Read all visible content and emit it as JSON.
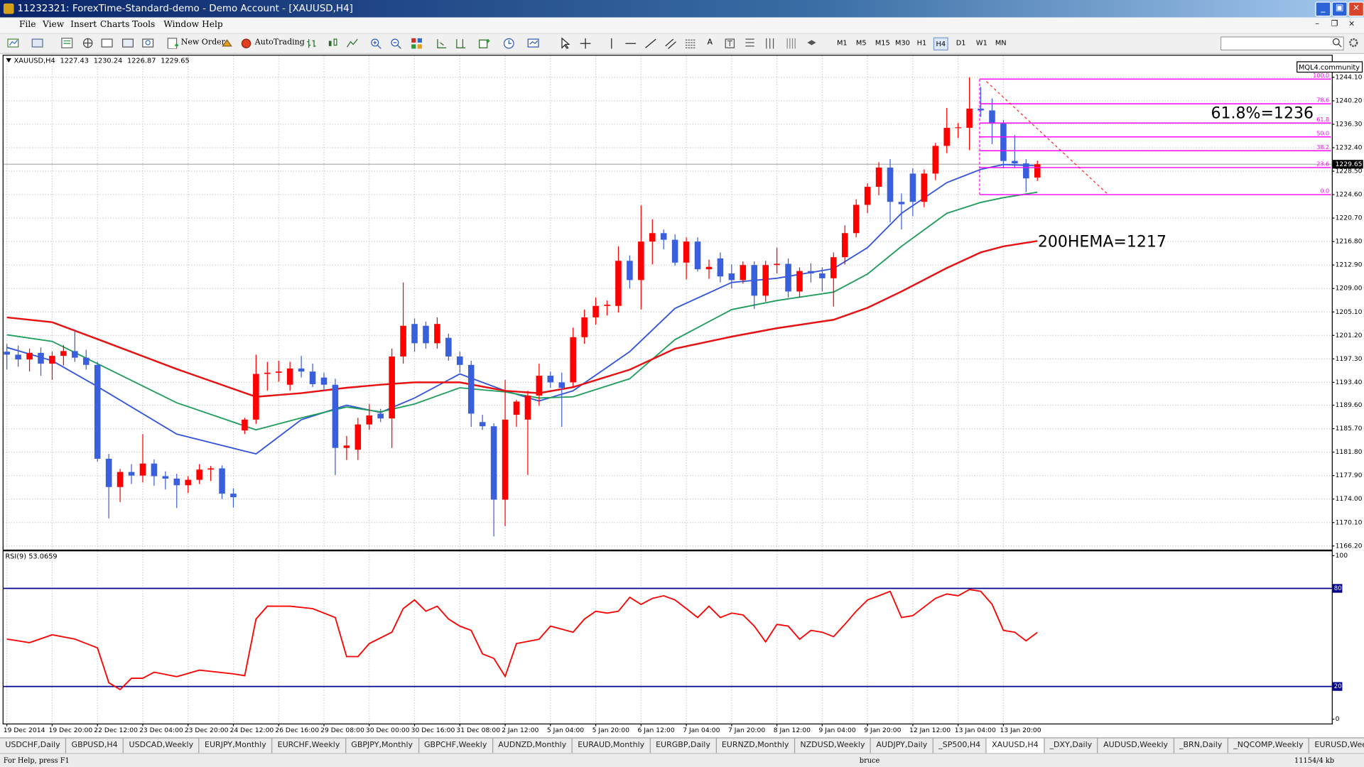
{
  "window": {
    "title": "11232321: ForexTime-Standard-demo - Demo Account - [XAUUSD,H4]"
  },
  "menu": [
    "File",
    "View",
    "Insert",
    "Charts",
    "Tools",
    "Window",
    "Help"
  ],
  "toolbar": {
    "new_order": "New Order",
    "autotrading": "AutoTrading",
    "timeframes": [
      "M1",
      "M5",
      "M15",
      "M30",
      "H1",
      "H4",
      "D1",
      "W1",
      "MN"
    ],
    "active": "H4"
  },
  "badge": "MQL4.community",
  "chart_data": [
    {
      "type": "candlestick",
      "symbol": "XAUUSD,H4",
      "candles": [
        [
          1198.5,
          1199.8,
          1195.5,
          1198.0
        ],
        [
          1198.0,
          1199.5,
          1196.0,
          1197.2
        ],
        [
          1197.2,
          1199.0,
          1195.2,
          1198.3
        ],
        [
          1198.3,
          1199.2,
          1194.5,
          1196.5
        ],
        [
          1196.5,
          1198.5,
          1193.8,
          1197.8
        ],
        [
          1197.8,
          1199.6,
          1196.2,
          1198.6
        ],
        [
          1198.6,
          1202.2,
          1196.8,
          1197.5
        ],
        [
          1197.5,
          1198.8,
          1195.5,
          1196.3
        ],
        [
          1196.3,
          1196.8,
          1180.2,
          1180.7
        ],
        [
          1180.7,
          1181.5,
          1170.8,
          1176.0
        ],
        [
          1176.0,
          1179.0,
          1173.5,
          1178.5
        ],
        [
          1178.5,
          1179.8,
          1176.5,
          1177.9
        ],
        [
          1177.9,
          1184.8,
          1176.8,
          1179.9
        ],
        [
          1179.9,
          1180.6,
          1176.2,
          1177.8
        ],
        [
          1177.8,
          1178.6,
          1175.6,
          1177.4
        ],
        [
          1177.4,
          1178.2,
          1172.5,
          1176.3
        ],
        [
          1176.3,
          1177.8,
          1175.0,
          1177.2
        ],
        [
          1177.2,
          1179.8,
          1176.5,
          1178.9
        ],
        [
          1178.9,
          1179.5,
          1177.0,
          1179.1
        ],
        [
          1179.1,
          1179.6,
          1174.0,
          1174.9
        ],
        [
          1174.9,
          1175.8,
          1172.6,
          1174.3
        ],
        [
          1185.4,
          1187.5,
          1184.8,
          1187.2
        ],
        [
          1187.2,
          1198.0,
          1186.5,
          1194.8
        ],
        [
          1194.8,
          1196.8,
          1192.0,
          1195.0
        ],
        [
          1195.0,
          1197.0,
          1193.5,
          1195.2
        ],
        [
          1193.0,
          1196.8,
          1192.0,
          1195.7
        ],
        [
          1195.7,
          1197.8,
          1194.2,
          1195.2
        ],
        [
          1195.2,
          1196.5,
          1192.6,
          1193.1
        ],
        [
          1194.2,
          1195.0,
          1192.0,
          1193.0
        ],
        [
          1193.0,
          1194.0,
          1178.0,
          1182.5
        ],
        [
          1182.5,
          1184.5,
          1180.5,
          1182.9
        ],
        [
          1182.2,
          1187.5,
          1180.5,
          1186.4
        ],
        [
          1186.4,
          1189.8,
          1185.5,
          1187.9
        ],
        [
          1188.2,
          1189.0,
          1186.8,
          1187.4
        ],
        [
          1187.4,
          1199.0,
          1182.5,
          1197.7
        ],
        [
          1197.7,
          1210.0,
          1196.5,
          1202.8
        ],
        [
          1203.1,
          1204.0,
          1198.5,
          1199.9
        ],
        [
          1202.8,
          1203.5,
          1199.0,
          1199.9
        ],
        [
          1199.9,
          1204.2,
          1199.0,
          1203.1
        ],
        [
          1200.8,
          1201.5,
          1197.0,
          1197.7
        ],
        [
          1197.7,
          1198.5,
          1195.0,
          1196.3
        ],
        [
          1196.3,
          1197.0,
          1186.0,
          1188.2
        ],
        [
          1186.8,
          1188.0,
          1185.5,
          1186.1
        ],
        [
          1186.1,
          1186.6,
          1167.8,
          1173.9
        ],
        [
          1173.9,
          1193.8,
          1169.5,
          1187.2
        ],
        [
          1188.0,
          1190.5,
          1186.0,
          1190.2
        ],
        [
          1187.2,
          1192.0,
          1178.0,
          1191.2
        ],
        [
          1191.2,
          1196.5,
          1189.5,
          1194.5
        ],
        [
          1194.5,
          1195.2,
          1192.5,
          1193.4
        ],
        [
          1193.4,
          1195.0,
          1186.0,
          1192.5
        ],
        [
          1193.4,
          1202.5,
          1192.5,
          1200.9
        ],
        [
          1200.9,
          1205.5,
          1199.8,
          1204.2
        ],
        [
          1204.2,
          1207.5,
          1203.0,
          1206.1
        ],
        [
          1206.1,
          1207.0,
          1204.5,
          1206.3
        ],
        [
          1206.1,
          1216.0,
          1205.0,
          1213.6
        ],
        [
          1213.6,
          1214.5,
          1209.0,
          1210.4
        ],
        [
          1210.4,
          1222.8,
          1205.5,
          1216.8
        ],
        [
          1216.8,
          1220.5,
          1213.0,
          1218.2
        ],
        [
          1218.2,
          1218.8,
          1215.5,
          1217.1
        ],
        [
          1217.1,
          1218.0,
          1212.8,
          1213.3
        ],
        [
          1213.3,
          1217.5,
          1210.5,
          1216.8
        ],
        [
          1216.8,
          1217.5,
          1211.8,
          1212.2
        ],
        [
          1212.2,
          1213.8,
          1210.6,
          1212.6
        ],
        [
          1214.0,
          1215.0,
          1210.0,
          1211.0
        ],
        [
          1211.5,
          1213.0,
          1209.0,
          1210.4
        ],
        [
          1210.4,
          1213.5,
          1209.8,
          1212.9
        ],
        [
          1212.9,
          1213.5,
          1205.6,
          1207.8
        ],
        [
          1207.8,
          1213.6,
          1206.8,
          1212.9
        ],
        [
          1212.9,
          1215.8,
          1211.5,
          1213.1
        ],
        [
          1213.1,
          1214.0,
          1207.5,
          1208.5
        ],
        [
          1208.5,
          1212.5,
          1207.5,
          1211.9
        ],
        [
          1211.9,
          1213.2,
          1210.0,
          1211.5
        ],
        [
          1211.5,
          1212.5,
          1208.5,
          1210.7
        ],
        [
          1210.7,
          1215.0,
          1206.0,
          1214.2
        ],
        [
          1214.2,
          1219.5,
          1213.0,
          1218.2
        ],
        [
          1218.2,
          1223.8,
          1217.5,
          1222.9
        ],
        [
          1222.9,
          1226.5,
          1221.5,
          1225.9
        ],
        [
          1225.9,
          1230.0,
          1224.5,
          1229.1
        ],
        [
          1229.1,
          1230.5,
          1220.0,
          1223.4
        ],
        [
          1223.4,
          1224.8,
          1218.8,
          1223.0
        ],
        [
          1228.1,
          1229.0,
          1221.0,
          1223.4
        ],
        [
          1223.4,
          1228.8,
          1222.5,
          1228.1
        ],
        [
          1228.1,
          1233.2,
          1227.0,
          1232.7
        ],
        [
          1232.7,
          1239.0,
          1231.5,
          1235.7
        ],
        [
          1235.7,
          1236.5,
          1234.0,
          1235.8
        ],
        [
          1235.7,
          1244.1,
          1232.0,
          1238.9
        ],
        [
          1238.9,
          1242.5,
          1237.5,
          1238.6
        ],
        [
          1238.6,
          1240.6,
          1233.0,
          1236.4
        ],
        [
          1236.4,
          1237.0,
          1229.0,
          1230.2
        ],
        [
          1230.2,
          1234.5,
          1229.0,
          1229.8
        ],
        [
          1229.8,
          1230.5,
          1225.0,
          1227.3
        ],
        [
          1227.43,
          1230.24,
          1226.87,
          1229.65
        ]
      ],
      "up_color": "#ff0000",
      "down_color": "#3a5fdc",
      "series": [
        {
          "color": "#3355dd",
          "x": [
            0,
            4,
            8,
            15,
            22,
            26,
            30,
            33,
            36,
            40,
            44,
            47,
            50,
            55,
            59,
            64,
            68,
            73,
            76,
            79,
            83,
            86,
            88,
            91
          ],
          "values": [
            1199.2,
            1197.0,
            1192.7,
            1184.8,
            1181.5,
            1187.2,
            1189.6,
            1188.4,
            1190.8,
            1194.8,
            1192.0,
            1190.3,
            1192.0,
            1198.5,
            1205.7,
            1210.0,
            1210.7,
            1212.3,
            1215.8,
            1221.5,
            1226.6,
            1228.8,
            1229.6,
            1229.4
          ]
        },
        {
          "color": "#1f9d5c",
          "x": [
            0,
            4,
            8,
            15,
            22,
            26,
            30,
            33,
            36,
            40,
            44,
            47,
            50,
            55,
            59,
            64,
            68,
            73,
            76,
            79,
            83,
            86,
            88,
            91
          ],
          "values": [
            1201.3,
            1200.2,
            1196.5,
            1190.0,
            1185.5,
            1187.5,
            1189.3,
            1188.5,
            1189.8,
            1192.5,
            1191.8,
            1190.8,
            1191.0,
            1194.0,
            1200.5,
            1205.5,
            1207.0,
            1208.4,
            1211.4,
            1216.0,
            1221.5,
            1223.3,
            1224.1,
            1225.0
          ]
        },
        {
          "color": "#e81010",
          "x": [
            0,
            4,
            8,
            15,
            22,
            26,
            30,
            33,
            36,
            40,
            44,
            47,
            50,
            55,
            59,
            64,
            68,
            73,
            76,
            79,
            83,
            86,
            88,
            91
          ],
          "values": [
            1204.2,
            1203.4,
            1200.6,
            1195.6,
            1191.0,
            1191.6,
            1192.5,
            1193.0,
            1193.4,
            1193.4,
            1192.0,
            1191.6,
            1192.6,
            1195.5,
            1199.0,
            1201.0,
            1202.4,
            1203.8,
            1205.8,
            1208.5,
            1212.4,
            1215.0,
            1216.0,
            1216.9
          ]
        }
      ],
      "xlim": [
        -0.3,
        117
      ],
      "xticks": [
        {
          "value": 0,
          "label": "19 Dec 2014"
        },
        {
          "value": 4,
          "label": "19 Dec 20:00"
        },
        {
          "value": 8,
          "label": "22 Dec 12:00"
        },
        {
          "value": 12,
          "label": "23 Dec 04:00"
        },
        {
          "value": 16,
          "label": "23 Dec 20:00"
        },
        {
          "value": 20,
          "label": "24 Dec 12:00"
        },
        {
          "value": 24,
          "label": "26 Dec 16:00"
        },
        {
          "value": 28,
          "label": "29 Dec 08:00"
        },
        {
          "value": 32,
          "label": "30 Dec 00:00"
        },
        {
          "value": 36,
          "label": "30 Dec 16:00"
        },
        {
          "value": 40,
          "label": "31 Dec 08:00"
        },
        {
          "value": 44,
          "label": "2 Jan 12:00"
        },
        {
          "value": 48,
          "label": "5 Jan 04:00"
        },
        {
          "value": 52,
          "label": "5 Jan 20:00"
        },
        {
          "value": 56,
          "label": "6 Jan 12:00"
        },
        {
          "value": 60,
          "label": "7 Jan 04:00"
        },
        {
          "value": 64,
          "label": "7 Jan 20:00"
        },
        {
          "value": 68,
          "label": "8 Jan 12:00"
        },
        {
          "value": 72,
          "label": "9 Jan 04:00"
        },
        {
          "value": 76,
          "label": "9 Jan 20:00"
        },
        {
          "value": 80,
          "label": "12 Jan 12:00"
        },
        {
          "value": 84,
          "label": "13 Jan 04:00"
        },
        {
          "value": 88,
          "label": "13 Jan 20:00"
        }
      ],
      "ylim": [
        1165.6,
        1247.7
      ],
      "yticks": [
        {
          "value": 1244.1,
          "label": "1244.10"
        },
        {
          "value": 1240.2,
          "label": "1240.20"
        },
        {
          "value": 1236.3,
          "label": "1236.30"
        },
        {
          "value": 1232.4,
          "label": "1232.40"
        },
        {
          "value": 1228.5,
          "label": "1228.50"
        },
        {
          "value": 1224.6,
          "label": "1224.60"
        },
        {
          "value": 1220.7,
          "label": "1220.70"
        },
        {
          "value": 1216.8,
          "label": "1216.80"
        },
        {
          "value": 1212.9,
          "label": "1212.90"
        },
        {
          "value": 1209,
          "label": "1209.00"
        },
        {
          "value": 1205.1,
          "label": "1205.10"
        },
        {
          "value": 1201.2,
          "label": "1201.20"
        },
        {
          "value": 1197.3,
          "label": "1197.30"
        },
        {
          "value": 1193.4,
          "label": "1193.40"
        },
        {
          "value": 1189.6,
          "label": "1189.60"
        },
        {
          "value": 1185.7,
          "label": "1185.70"
        },
        {
          "value": 1181.8,
          "label": "1181.80"
        },
        {
          "value": 1177.9,
          "label": "1177.90"
        },
        {
          "value": 1174,
          "label": "1174.00"
        },
        {
          "value": 1170.1,
          "label": "1170.10"
        },
        {
          "value": 1166.2,
          "label": "1166.20"
        }
      ],
      "grid": true,
      "bid": {
        "value": 1229.65,
        "label": "1229.65"
      },
      "fib": {
        "start_x": 85.9,
        "color": "#ff00ff",
        "levels": [
          {
            "label": "100.0",
            "price": 1243.8
          },
          {
            "label": "78.6",
            "price": 1239.7
          },
          {
            "label": "61.8",
            "price": 1236.5
          },
          {
            "label": "50.0",
            "price": 1234.2
          },
          {
            "label": "38.2",
            "price": 1231.9
          },
          {
            "label": "23.6",
            "price": 1229.1
          },
          {
            "label": "0.0",
            "price": 1224.6
          }
        ]
      },
      "trendline": {
        "x": [
          86.5,
          97.2
        ],
        "y": [
          1243.4,
          1224.7
        ],
        "color": "#ff0000"
      },
      "annotations": [
        "61.8%=1236",
        "200HEMA=1217"
      ]
    },
    {
      "type": "line",
      "label": "RSI(9) 53.0659",
      "color": "#ff0000",
      "x": [
        0,
        2,
        4,
        6,
        8,
        9,
        10,
        11,
        12,
        13,
        15,
        17,
        20,
        21,
        22,
        23,
        25,
        27,
        29,
        30,
        31,
        32,
        34,
        35,
        36,
        37,
        38,
        39,
        40,
        41,
        42,
        43,
        44,
        45,
        47,
        48,
        50,
        51,
        52,
        53,
        54,
        55,
        56,
        57,
        58,
        59,
        60,
        61,
        62,
        63,
        64,
        65,
        66,
        67,
        68,
        69,
        70,
        71,
        72,
        73,
        74,
        75,
        76,
        77,
        78,
        79,
        80,
        81,
        82,
        83,
        84,
        85,
        86,
        87,
        88,
        89,
        90,
        91
      ],
      "values": [
        49,
        46.8,
        51.6,
        49,
        43.6,
        22.3,
        18.1,
        25,
        25,
        28.7,
        26,
        30,
        27.7,
        26.6,
        61.2,
        69.1,
        69.1,
        67.6,
        62.2,
        38.3,
        38.3,
        46.3,
        53.2,
        67.6,
        72.9,
        66,
        69.1,
        61.2,
        56.9,
        54.3,
        39.9,
        37.2,
        26.1,
        46.3,
        48.9,
        56.9,
        53.2,
        61.2,
        66,
        64.9,
        66,
        74.5,
        70.2,
        73.9,
        75.5,
        72.9,
        67.6,
        62.2,
        69.1,
        62.2,
        64.9,
        63.8,
        56.9,
        47.3,
        58,
        56.9,
        48.9,
        54.3,
        53.2,
        50.5,
        58,
        66,
        72.9,
        75.5,
        78.2,
        62.2,
        63.3,
        68.6,
        73.9,
        76.6,
        75.5,
        79.3,
        78.2,
        70.2,
        54.3,
        53.2,
        47.9,
        53.0659
      ],
      "xlim": [
        -0.3,
        117
      ],
      "ylim": [
        0,
        100
      ],
      "yticks": [
        100,
        0
      ],
      "levels": [
        80,
        20
      ],
      "level_color": "#00008b",
      "grid": true
    }
  ],
  "tabs": [
    "USDCHF,Daily",
    "GBPUSD,H4",
    "USDCAD,Weekly",
    "EURJPY,Monthly",
    "EURCHF,Weekly",
    "GBPJPY,Monthly",
    "GBPCHF,Weekly",
    "AUDNZD,Monthly",
    "EURAUD,Monthly",
    "EURGBP,Daily",
    "EURNZD,Monthly",
    "NZDUSD,Weekly",
    "AUDJPY,Daily",
    "_SP500,H4",
    "XAUUSD,H4",
    "_DXY,Daily",
    "AUDUSD,Weekly",
    "_BRN,Daily",
    "_NQCOMP,Weekly",
    "EURUSD,Weekly"
  ],
  "active_tab": "XAUUSD,H4",
  "status": {
    "help": "For Help, press F1",
    "user": "bruce",
    "memory": "11154/4 kb"
  }
}
